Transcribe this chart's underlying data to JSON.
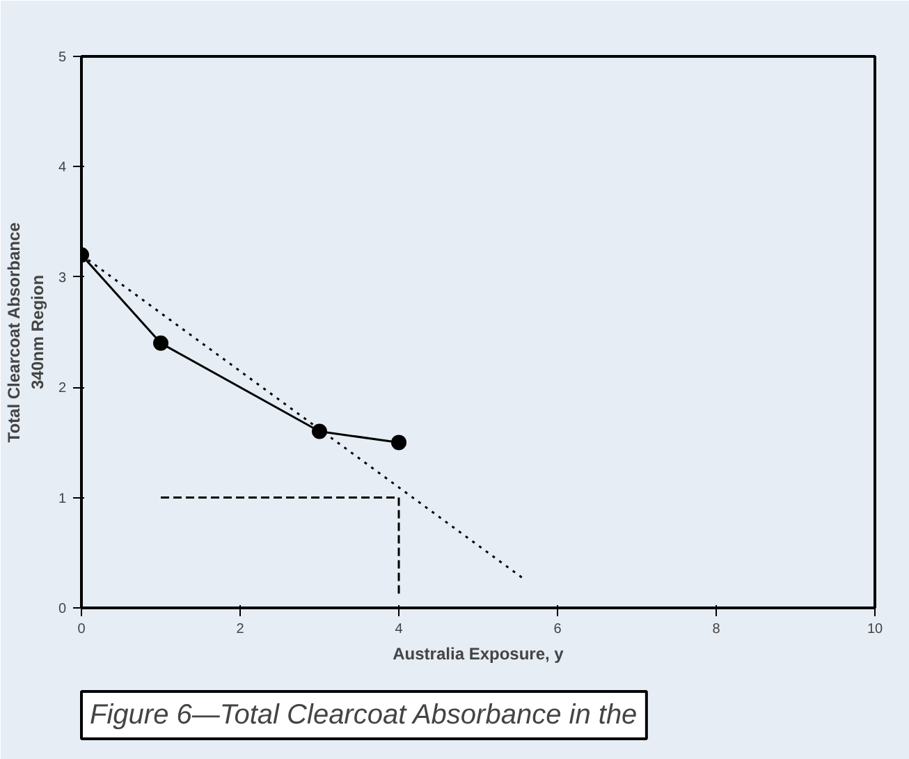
{
  "chart_data": {
    "type": "line",
    "xlabel": "Australia Exposure, y",
    "ylabel": "Total Clearcoat Absorbance\n340nm Region",
    "xlim": [
      0,
      10
    ],
    "xticks": [
      0,
      2,
      4,
      6,
      8,
      10
    ],
    "ylim": [
      0,
      5
    ],
    "yticks": [
      0,
      1,
      2,
      3,
      4,
      5
    ],
    "grid": false,
    "series": [
      {
        "color": "#000000",
        "x": [
          0,
          1,
          3,
          4
        ],
        "values": [
          3.2,
          2.4,
          1.6,
          1.5
        ],
        "marker": "circle",
        "line_style": "solid"
      },
      {
        "color": "#000000",
        "x": [
          0,
          5.6
        ],
        "values": [
          3.2,
          0.25
        ],
        "marker": "none",
        "line_style": "dotted"
      },
      {
        "color": "#000000",
        "x": [
          1.0,
          4.0
        ],
        "values": [
          1.0,
          1.0
        ],
        "marker": "none",
        "line_style": "dashed"
      },
      {
        "color": "#000000",
        "x": [
          4.0,
          4.0
        ],
        "values": [
          1.0,
          0.1
        ],
        "marker": "none",
        "line_style": "dashed"
      }
    ],
    "annotations": [
      "Figure 6—Total Clearcoat Absorbance in the"
    ]
  }
}
